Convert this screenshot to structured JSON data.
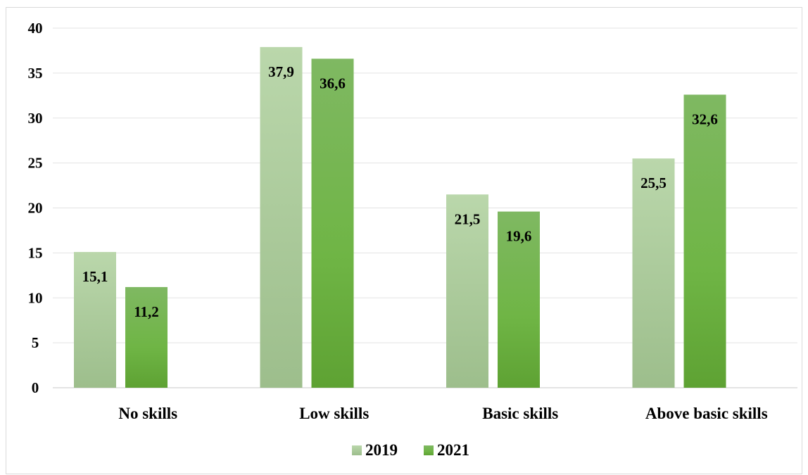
{
  "chart_data": {
    "type": "bar",
    "title": "",
    "xlabel": "",
    "ylabel": "",
    "categories": [
      "No skills",
      "Low skills",
      "Basic skills",
      "Above basic skills"
    ],
    "series": [
      {
        "name": "2019",
        "values": [
          15.1,
          37.9,
          21.5,
          25.5
        ],
        "labels": [
          "15,1",
          "37,9",
          "21,5",
          "25,5"
        ],
        "color": "#b7d3a8",
        "color_bottom": "#9dbe8c"
      },
      {
        "name": "2021",
        "values": [
          11.2,
          36.6,
          19.6,
          32.6
        ],
        "labels": [
          "11,2",
          "36,6",
          "19,6",
          "32,6"
        ],
        "color": "#7ab85a",
        "color_bottom": "#5ea233"
      }
    ],
    "ylim": [
      0,
      40
    ],
    "yticks": [
      0,
      5,
      10,
      15,
      20,
      25,
      30,
      35,
      40
    ],
    "grid": true,
    "legend": "bottom-center"
  }
}
